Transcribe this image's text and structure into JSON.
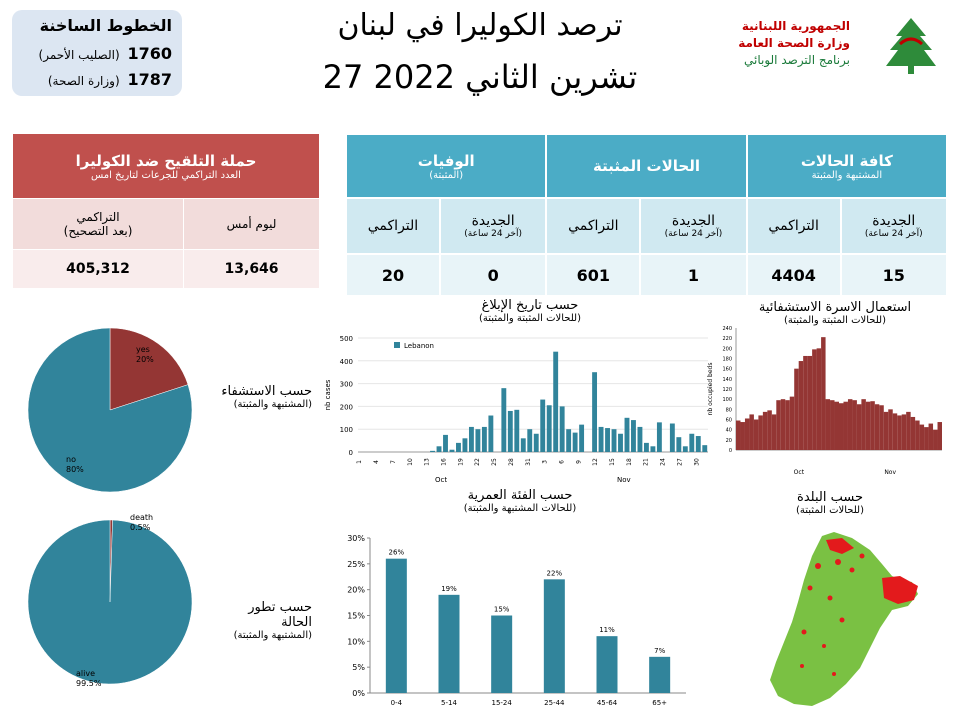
{
  "hotline": {
    "title": "الخطوط الساخنة",
    "rows": [
      {
        "number": "1760",
        "label": "(الصليب الأحمر)"
      },
      {
        "number": "1787",
        "label": "(وزارة الصحة)"
      }
    ]
  },
  "header": {
    "title_line1": "ترصد الكوليرا في لبنان",
    "title_line2": "27 تشرين الثاني 2022"
  },
  "logo": {
    "line1": "الجمهورية اللبنانية",
    "line2": "وزارة الصحة العامة",
    "line3": "برنامج الترصد الوبائي"
  },
  "colors": {
    "teal": "#31849b",
    "maroon": "#943634",
    "red_header": "#c0504d",
    "blue_header": "#4bacc6",
    "map_green": "#7ac143",
    "map_red": "#e31a1c"
  },
  "vaccination": {
    "title": "حملة التلقيح ضد الكوليرا",
    "subtitle": "العدد التراكمي للجرعات لتاريخ امس",
    "col_yesterday": "ليوم أمس",
    "col_cumulative_l1": "التراكمي",
    "col_cumulative_l2": "(بعد التصحيح)",
    "yesterday": "13,646",
    "cumulative": "405,312"
  },
  "cases_table": {
    "groups": [
      {
        "title": "كافة الحالات",
        "sub": "المشتبهة والمثبتة"
      },
      {
        "title": "الحالات المثبتة",
        "sub": ""
      },
      {
        "title": "الوفيات",
        "sub": "(المثبتة)"
      }
    ],
    "new_label": "الجديدة",
    "new_sub": "(آخر 24 ساعة)",
    "cum_label": "التراكمي",
    "values": {
      "all_new": "15",
      "all_cum": "4404",
      "conf_new": "1",
      "conf_cum": "601",
      "death_new": "0",
      "death_cum": "20"
    }
  },
  "captions": {
    "report": {
      "l1": "حسب تاريخ الإبلاغ",
      "l2": "(للحالات المثبتة والمثبتة)"
    },
    "beds": {
      "l1": "استعمال الاسرة الاستشفائية",
      "l2": "(للحالات المثبتة والمثبتة)"
    },
    "hosp": {
      "l1": "حسب الاستشفاء",
      "l2": "(المشتبهة والمثبتة)"
    },
    "age": {
      "l1": "حسب الفئة العمرية",
      "l2": "(للحالات المشتبهة والمثبتة)"
    },
    "town": {
      "l1": "حسب البلدة",
      "l2": "(للحالات المثبتة)"
    },
    "outcome": {
      "l1": "حسب تطور",
      "l1b": "الحالة",
      "l2": "(المشتبهة والمثبتة)"
    }
  },
  "chart_data": [
    {
      "type": "pie",
      "id": "hospitalization",
      "slices": [
        {
          "label": "yes",
          "value": 20,
          "text": "20%",
          "color": "#943634"
        },
        {
          "label": "no",
          "value": 80,
          "text": "80%",
          "color": "#31849b"
        }
      ]
    },
    {
      "type": "pie",
      "id": "outcome",
      "slices": [
        {
          "label": "death",
          "value": 0.5,
          "text": "0.5%",
          "color": "#943634"
        },
        {
          "label": "alive",
          "value": 99.5,
          "text": "99.5%",
          "color": "#31849b"
        }
      ]
    },
    {
      "type": "bar",
      "id": "cases_by_report_date",
      "legend": "Lebanon",
      "ylabel": "nb cases",
      "ylim": [
        0,
        500
      ],
      "yticks": [
        0,
        100,
        200,
        300,
        400,
        500
      ],
      "month_labels": [
        "Oct",
        "Nov"
      ],
      "xtick_labels": [
        "1",
        "4",
        "7",
        "10",
        "13",
        "16",
        "19",
        "22",
        "25",
        "28",
        "31",
        "3",
        "6",
        "9",
        "12",
        "15",
        "18",
        "21",
        "24",
        "27",
        "30"
      ],
      "values": [
        0,
        0,
        0,
        0,
        0,
        0,
        0,
        0,
        0,
        0,
        0,
        5,
        25,
        75,
        10,
        40,
        60,
        110,
        100,
        110,
        160,
        0,
        280,
        180,
        185,
        60,
        100,
        80,
        230,
        205,
        440,
        200,
        100,
        85,
        120,
        0,
        350,
        110,
        105,
        100,
        80,
        150,
        140,
        110,
        40,
        25,
        130,
        0,
        125,
        65,
        25,
        80,
        70,
        30
      ],
      "color": "#31849b"
    },
    {
      "type": "bar",
      "id": "hospital_bed_use",
      "ylabel": "nb occupied beds",
      "ylim": [
        0,
        240
      ],
      "yticks": [
        0,
        20,
        40,
        60,
        80,
        100,
        120,
        140,
        160,
        180,
        200,
        220,
        240
      ],
      "month_labels": [
        "Oct",
        "Nov"
      ],
      "values": [
        58,
        55,
        62,
        70,
        60,
        68,
        75,
        78,
        70,
        98,
        100,
        98,
        105,
        160,
        175,
        185,
        185,
        198,
        200,
        222,
        100,
        98,
        95,
        92,
        95,
        100,
        98,
        90,
        100,
        95,
        96,
        90,
        88,
        75,
        80,
        72,
        68,
        70,
        75,
        65,
        58,
        50,
        45,
        52,
        40,
        55
      ],
      "color": "#943634"
    },
    {
      "type": "bar",
      "id": "age_group",
      "categories": [
        "0-4",
        "5-14",
        "15-24",
        "25-44",
        "45-64",
        "65+"
      ],
      "values": [
        26,
        19,
        15,
        22,
        11,
        7
      ],
      "labels": [
        "26%",
        "19%",
        "15%",
        "22%",
        "11%",
        "7%"
      ],
      "yticks": [
        "0%",
        "5%",
        "10%",
        "15%",
        "20%",
        "25%",
        "30%"
      ],
      "ylim": [
        0,
        30
      ],
      "color": "#31849b"
    }
  ]
}
